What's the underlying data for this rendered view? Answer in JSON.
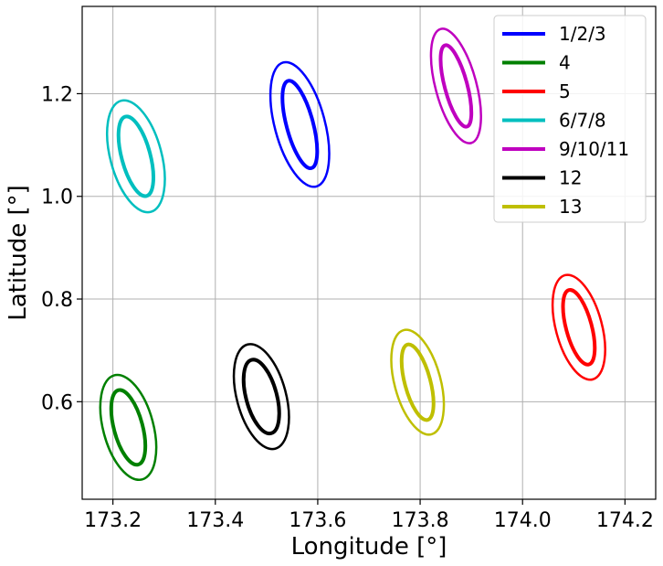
{
  "chart_data": {
    "type": "line",
    "xlabel": "Longitude [°]",
    "ylabel": "Latitude [°]",
    "xlim": [
      173.14,
      174.26
    ],
    "ylim": [
      0.41,
      1.37
    ],
    "xticks": [
      173.2,
      173.4,
      173.6,
      173.8,
      174.0,
      174.2
    ],
    "xtick_labels": [
      "173.2",
      "173.4",
      "173.6",
      "173.8",
      "174.0",
      "174.2"
    ],
    "yticks": [
      0.6,
      0.8,
      1.0,
      1.2
    ],
    "ytick_labels": [
      "0.6",
      "0.8",
      "1.0",
      "1.2"
    ],
    "grid": true,
    "legend_position": "top-right",
    "series": [
      {
        "name": "1/2/3",
        "color": "#0000ff",
        "center": [
          173.565,
          1.14
        ],
        "ellipses": [
          {
            "semi_x": 0.026,
            "semi_y": 0.088
          },
          {
            "semi_x": 0.049,
            "semi_y": 0.125
          }
        ]
      },
      {
        "name": "4",
        "color": "#008000",
        "center": [
          173.23,
          0.55
        ],
        "ellipses": [
          {
            "semi_x": 0.028,
            "semi_y": 0.075
          },
          {
            "semi_x": 0.049,
            "semi_y": 0.105
          }
        ]
      },
      {
        "name": "5",
        "color": "#ff0000",
        "center": [
          174.11,
          0.745
        ],
        "ellipses": [
          {
            "semi_x": 0.025,
            "semi_y": 0.075
          },
          {
            "semi_x": 0.045,
            "semi_y": 0.105
          }
        ]
      },
      {
        "name": "6/7/8",
        "color": "#00bfbf",
        "center": [
          173.245,
          1.078
        ],
        "ellipses": [
          {
            "semi_x": 0.028,
            "semi_y": 0.08
          },
          {
            "semi_x": 0.05,
            "semi_y": 0.112
          }
        ]
      },
      {
        "name": "9/10/11",
        "color": "#bf00bf",
        "center": [
          173.87,
          1.215
        ],
        "ellipses": [
          {
            "semi_x": 0.022,
            "semi_y": 0.082
          },
          {
            "semi_x": 0.04,
            "semi_y": 0.115
          }
        ]
      },
      {
        "name": "12",
        "color": "#000000",
        "center": [
          173.49,
          0.61
        ],
        "ellipses": [
          {
            "semi_x": 0.03,
            "semi_y": 0.074
          },
          {
            "semi_x": 0.048,
            "semi_y": 0.105
          }
        ]
      },
      {
        "name": "13",
        "color": "#bfbf00",
        "center": [
          173.795,
          0.638
        ],
        "ellipses": [
          {
            "semi_x": 0.025,
            "semi_y": 0.076
          },
          {
            "semi_x": 0.045,
            "semi_y": 0.105
          }
        ]
      }
    ]
  }
}
